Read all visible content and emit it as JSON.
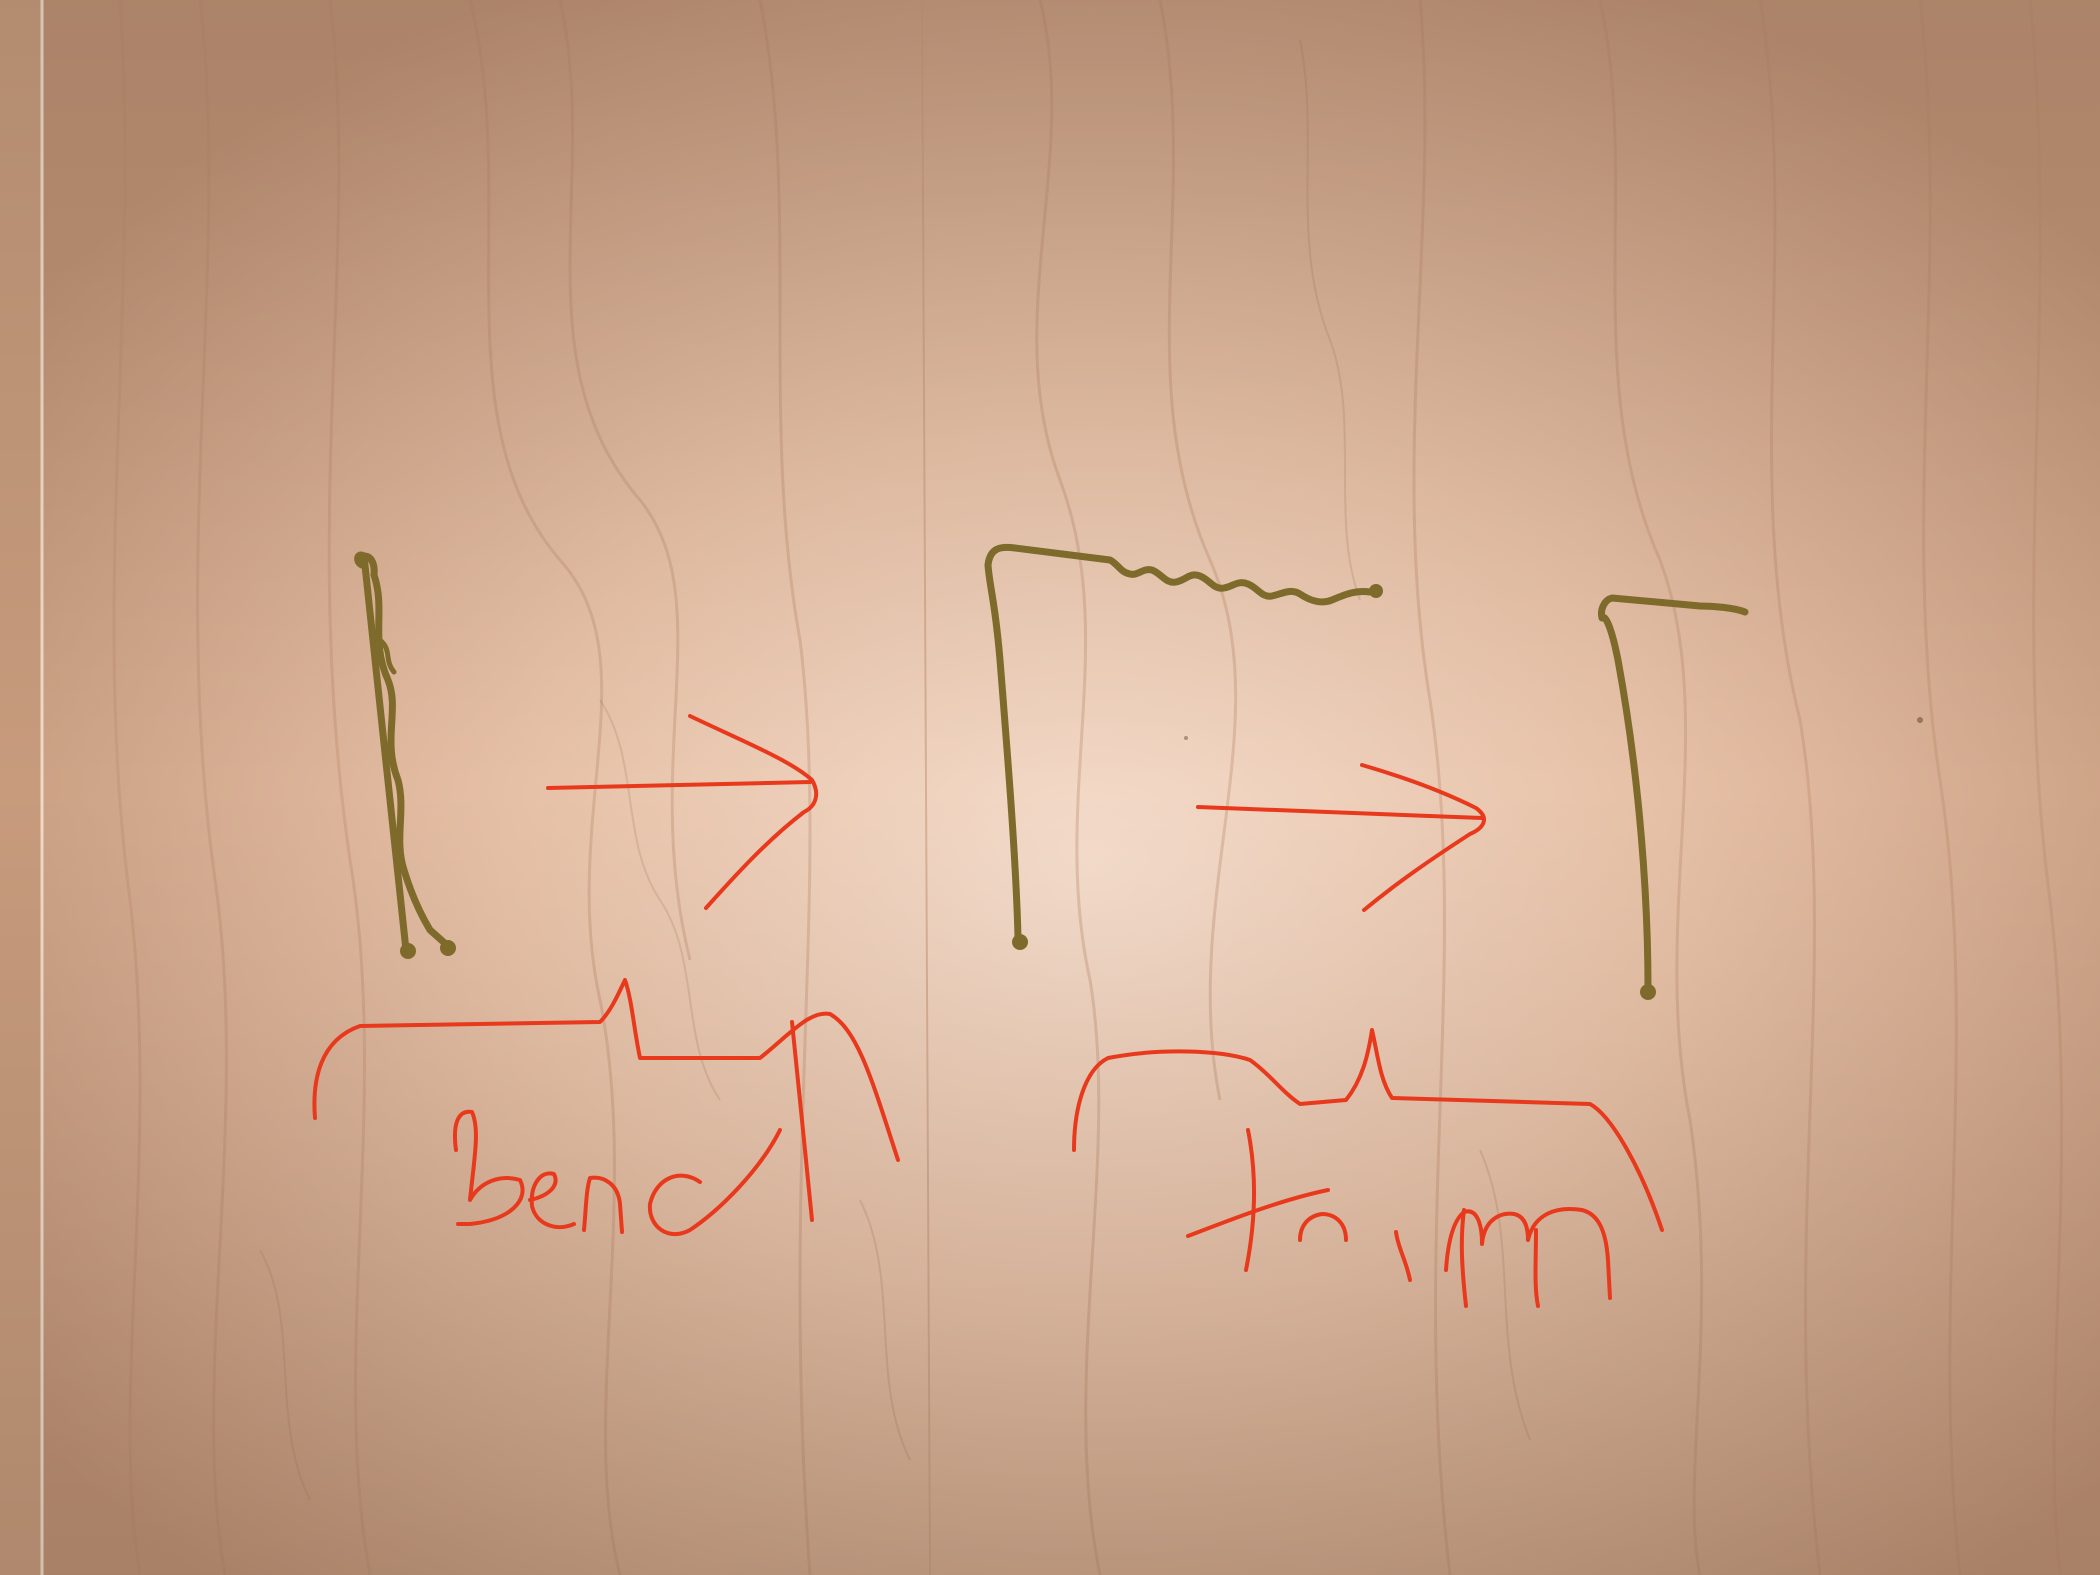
{
  "annotations": {
    "step1_label": "bend",
    "step2_label": "trim"
  },
  "colors": {
    "wood_base": "#d9af92",
    "wood_light": "#f3d8c6",
    "wood_grain": "#b98a6b",
    "wire": "#7e6a2a",
    "ink": "#e8391d"
  }
}
